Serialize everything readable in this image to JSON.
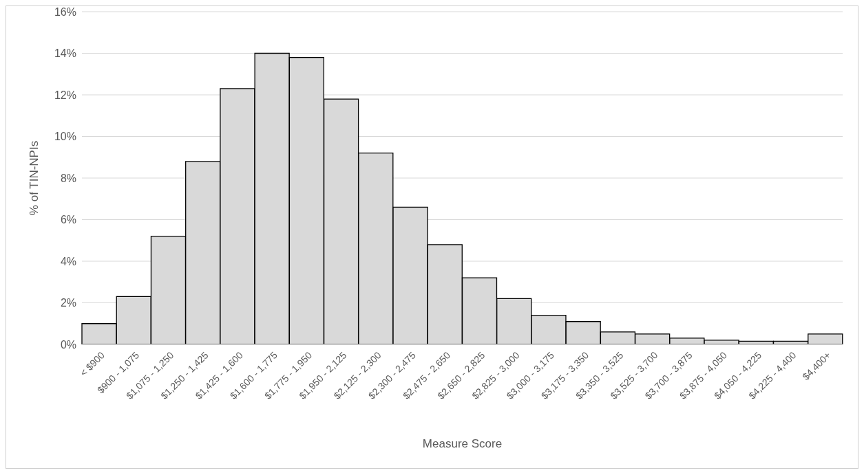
{
  "chart_data": {
    "type": "bar",
    "xlabel": "Measure Score",
    "ylabel": "% of TIN-NPIs",
    "categories": [
      "< $900",
      "$900 - 1,075",
      "$1,075 - 1,250",
      "$1,250 - 1,425",
      "$1,425 - 1,600",
      "$1,600 - 1,775",
      "$1,775 - 1,950",
      "$1,950 - 2,125",
      "$2,125 - 2,300",
      "$2,300 - 2,475",
      "$2,475 - 2,650",
      "$2,650 - 2,825",
      "$2,825 - 3,000",
      "$3,000 - 3,175",
      "$3,175 - 3,350",
      "$3,350 - 3,525",
      "$3,525 - 3,700",
      "$3,700 - 3,875",
      "$3,875 - 4,050",
      "$4,050 - 4,225",
      "$4,225 - 4,400",
      "$4,400+"
    ],
    "values": [
      1.0,
      2.3,
      5.2,
      8.8,
      12.3,
      14.0,
      13.8,
      11.8,
      9.2,
      6.6,
      4.8,
      3.2,
      2.2,
      1.4,
      1.1,
      0.6,
      0.5,
      0.3,
      0.2,
      0.15,
      0.15,
      0.5
    ],
    "color": "#d9d9d9",
    "ylim": [
      0,
      16
    ],
    "yticks": [
      {
        "value": 0,
        "label": "0%"
      },
      {
        "value": 2,
        "label": "2%"
      },
      {
        "value": 4,
        "label": "4%"
      },
      {
        "value": 6,
        "label": "6%"
      },
      {
        "value": 8,
        "label": "8%"
      },
      {
        "value": 10,
        "label": "10%"
      },
      {
        "value": 12,
        "label": "12%"
      },
      {
        "value": 14,
        "label": "14%"
      },
      {
        "value": 16,
        "label": "16%"
      }
    ],
    "grid": "y",
    "legend": false
  }
}
